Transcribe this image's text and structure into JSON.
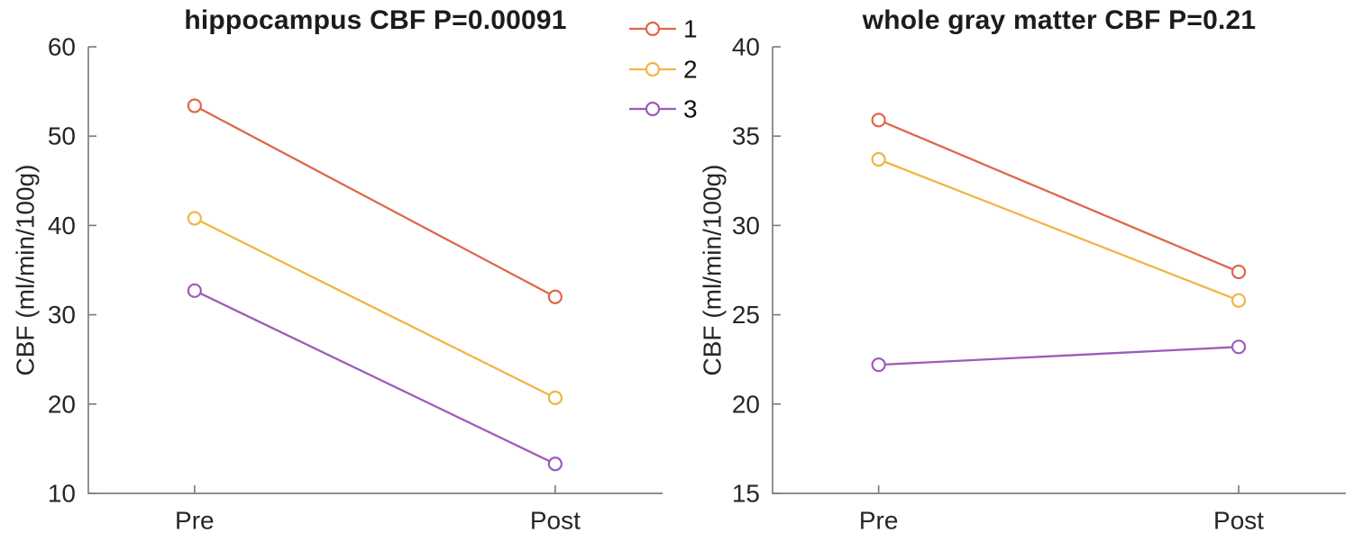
{
  "figure": {
    "background": "#ffffff",
    "axis_color": "#7f7f7f",
    "text_color": "#262626"
  },
  "chart_data": [
    {
      "type": "line",
      "title": "hippocampus CBF P=0.00091",
      "xlabel": "",
      "ylabel": "CBF (ml/min/100g)",
      "categories": [
        "Pre",
        "Post"
      ],
      "ylim": [
        10,
        60
      ],
      "yticks": [
        10,
        20,
        30,
        40,
        50,
        60
      ],
      "grid": false,
      "marker": "open-circle",
      "series": [
        {
          "name": "1",
          "color": "#df674a",
          "values": [
            53.4,
            32.0
          ]
        },
        {
          "name": "2",
          "color": "#f1b545",
          "values": [
            40.8,
            20.7
          ]
        },
        {
          "name": "3",
          "color": "#9d5bba",
          "values": [
            32.7,
            13.3
          ]
        }
      ],
      "legend": {
        "visible": true,
        "entries": [
          "1",
          "2",
          "3"
        ],
        "position": "outside-top-right"
      }
    },
    {
      "type": "line",
      "title": "whole gray matter CBF P=0.21",
      "xlabel": "",
      "ylabel": "CBF (ml/min/100g)",
      "categories": [
        "Pre",
        "Post"
      ],
      "ylim": [
        15,
        40
      ],
      "yticks": [
        15,
        20,
        25,
        30,
        35,
        40
      ],
      "grid": false,
      "marker": "open-circle",
      "series": [
        {
          "name": "1",
          "color": "#df674a",
          "values": [
            35.9,
            27.4
          ]
        },
        {
          "name": "2",
          "color": "#f1b545",
          "values": [
            33.7,
            25.8
          ]
        },
        {
          "name": "3",
          "color": "#9d5bba",
          "values": [
            22.2,
            23.2
          ]
        }
      ],
      "legend": {
        "visible": false,
        "entries": [],
        "position": "none"
      }
    }
  ]
}
